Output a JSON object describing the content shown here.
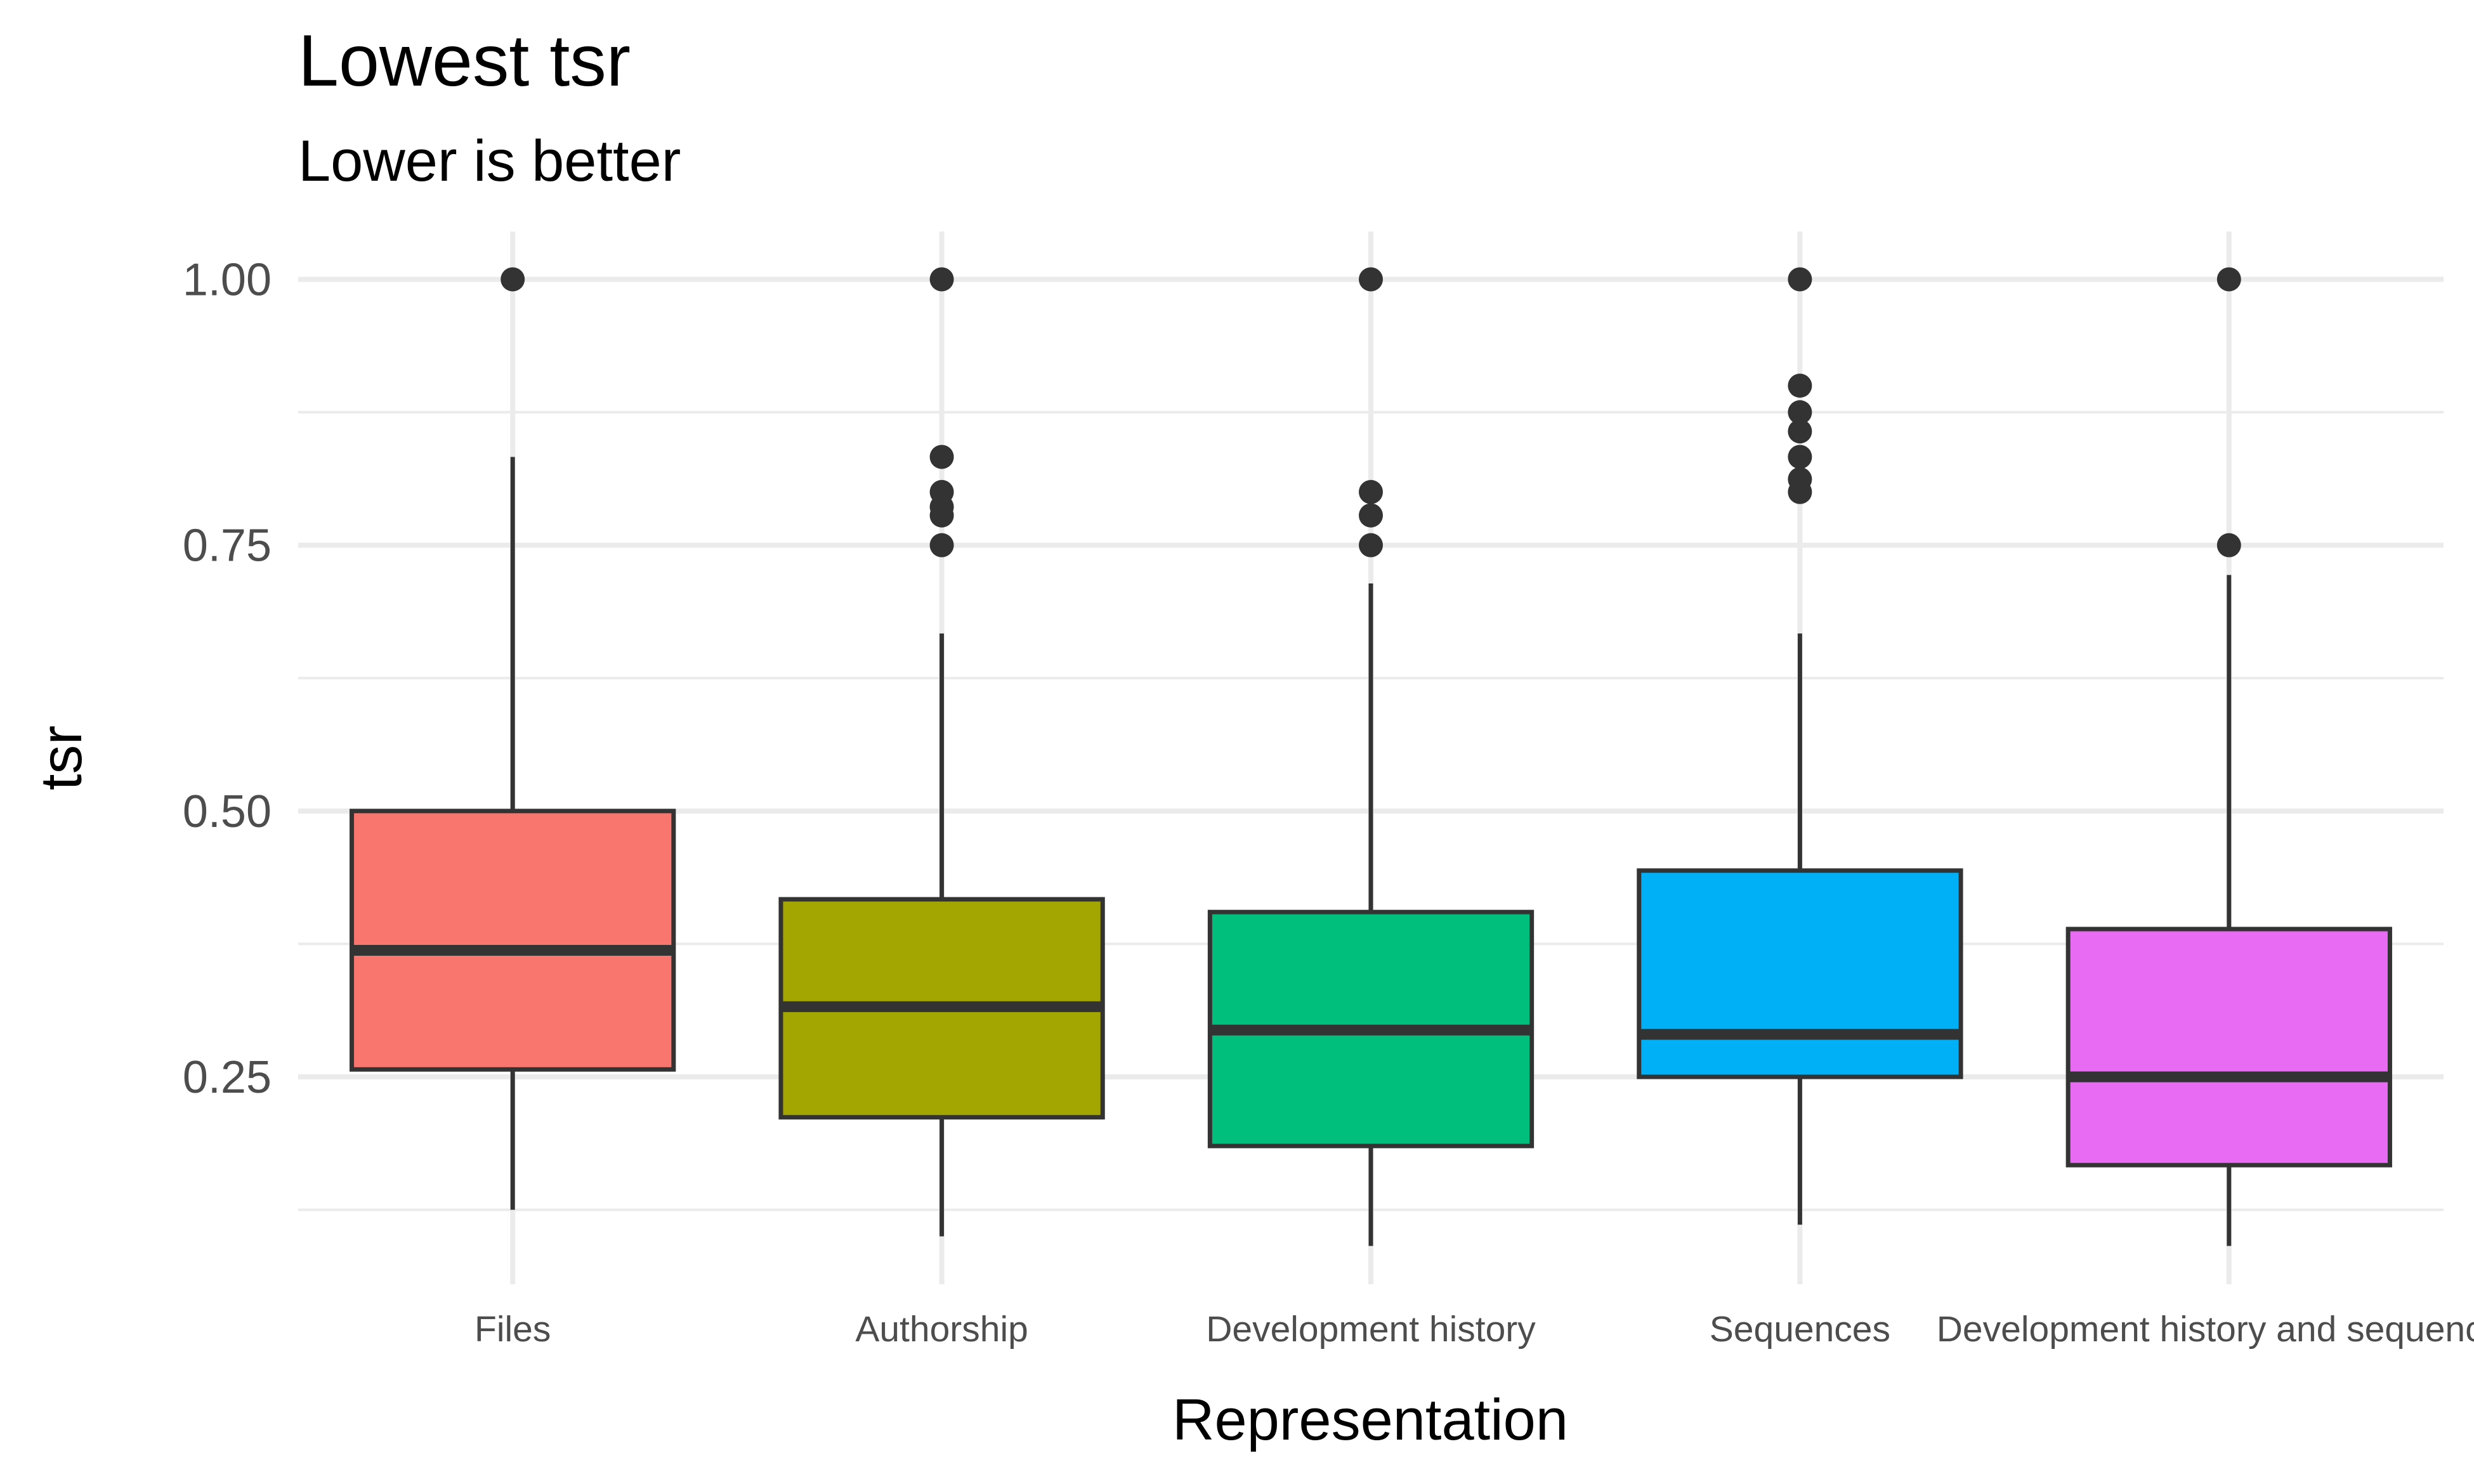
{
  "chart_data": {
    "type": "boxplot",
    "title": "Lowest tsr",
    "subtitle": "Lower is better",
    "xlabel": "Representation",
    "ylabel": "tsr",
    "ylim": [
      0.055,
      1.045
    ],
    "yticks": [
      0.25,
      0.5,
      0.75,
      1.0
    ],
    "ytick_labels": [
      "0.25",
      "0.50",
      "0.75",
      "1.00"
    ],
    "grid": true,
    "legend": "none",
    "categories": [
      "Files",
      "Authorship",
      "Development history",
      "Sequences",
      "Development history and sequences"
    ],
    "boxes": [
      {
        "category": "Files",
        "color": "#F8766D",
        "whisker_low": 0.125,
        "q1": 0.257,
        "median": 0.369,
        "q3": 0.5,
        "whisker_high": 0.833,
        "outliers": [
          1.0
        ]
      },
      {
        "category": "Authorship",
        "color": "#A3A500",
        "whisker_low": 0.1,
        "q1": 0.212,
        "median": 0.316,
        "q3": 0.417,
        "whisker_high": 0.667,
        "outliers": [
          0.75,
          0.778,
          0.786,
          0.8,
          0.833,
          1.0
        ]
      },
      {
        "category": "Development history",
        "color": "#00BF7D",
        "whisker_low": 0.091,
        "q1": 0.185,
        "median": 0.294,
        "q3": 0.405,
        "whisker_high": 0.714,
        "outliers": [
          0.75,
          0.778,
          0.8,
          1.0
        ]
      },
      {
        "category": "Sequences",
        "color": "#00B0F6",
        "whisker_low": 0.111,
        "q1": 0.25,
        "median": 0.29,
        "q3": 0.444,
        "whisker_high": 0.667,
        "outliers": [
          0.8,
          0.812,
          0.833,
          0.857,
          0.875,
          0.9,
          1.0
        ]
      },
      {
        "category": "Development history and sequences",
        "color": "#E76BF3",
        "whisker_low": 0.091,
        "q1": 0.167,
        "median": 0.25,
        "q3": 0.389,
        "whisker_high": 0.722,
        "outliers": [
          0.75,
          1.0
        ]
      }
    ]
  }
}
